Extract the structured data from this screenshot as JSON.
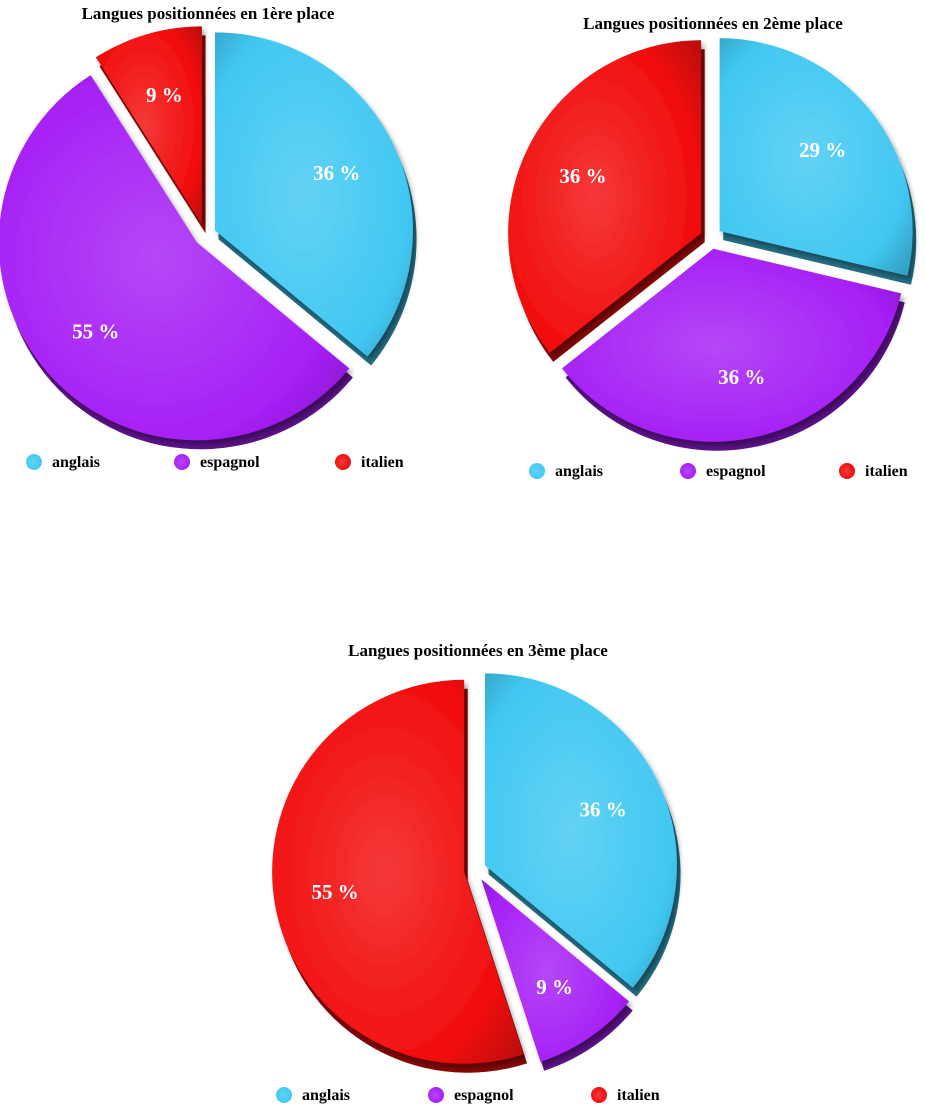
{
  "colors": {
    "anglais": "#41c8f2",
    "espagnol": "#a51ff5",
    "italien": "#f20d0d"
  },
  "chart_data": [
    {
      "type": "pie",
      "title": "Langues positionnées en 1ère place",
      "slices": [
        {
          "label": "anglais",
          "value": 36,
          "display": "36 %",
          "exploded": true
        },
        {
          "label": "espagnol",
          "value": 55,
          "display": "55 %",
          "exploded": true
        },
        {
          "label": "italien",
          "value": 9,
          "display": "9 %",
          "exploded": true
        }
      ],
      "legend": [
        "anglais",
        "espagnol",
        "italien"
      ],
      "legend_position": "bottom"
    },
    {
      "type": "pie",
      "title": "Langues positionnées en 2ème place",
      "slices": [
        {
          "label": "anglais",
          "value": 29,
          "display": "29 %",
          "exploded": true
        },
        {
          "label": "espagnol",
          "value": 36,
          "display": "36 %",
          "exploded": true
        },
        {
          "label": "italien",
          "value": 36,
          "display": "36 %",
          "exploded": true
        }
      ],
      "legend": [
        "anglais",
        "espagnol",
        "italien"
      ],
      "legend_position": "bottom"
    },
    {
      "type": "pie",
      "title": "Langues positionnées en 3ème place",
      "slices": [
        {
          "label": "anglais",
          "value": 36,
          "display": "36 %",
          "exploded": true
        },
        {
          "label": "espagnol",
          "value": 9,
          "display": "9 %",
          "exploded": true
        },
        {
          "label": "italien",
          "value": 55,
          "display": "55 %",
          "exploded": true
        }
      ],
      "legend": [
        "anglais",
        "espagnol",
        "italien"
      ],
      "legend_position": "bottom"
    }
  ]
}
